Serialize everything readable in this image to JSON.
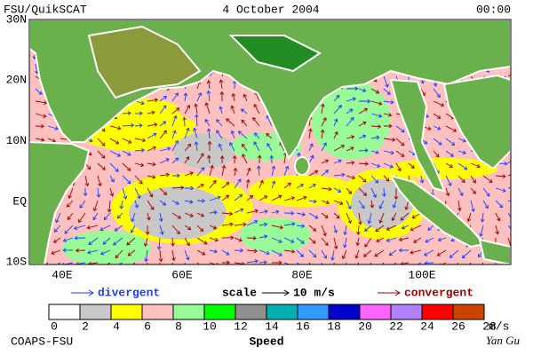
{
  "header": {
    "source": "FSU/QuikSCAT",
    "date": "4 October 2004",
    "time": "00:00"
  },
  "map": {
    "lat_labels": [
      "30N",
      "20N",
      "10N",
      "EQ",
      "10S"
    ],
    "lon_labels": [
      "40E",
      "60E",
      "80E",
      "100E"
    ]
  },
  "legend": {
    "divergent": "divergent",
    "scale": "scale",
    "scale_value": "10 m/s",
    "convergent": "convergent"
  },
  "colorbar": {
    "ticks": [
      0,
      2,
      4,
      6,
      8,
      10,
      12,
      14,
      16,
      18,
      20,
      22,
      24,
      26,
      28
    ],
    "unit": "m/s",
    "label": "Speed"
  },
  "footer": {
    "org": "COAPS-FSU",
    "author": "Yan Gu"
  }
}
